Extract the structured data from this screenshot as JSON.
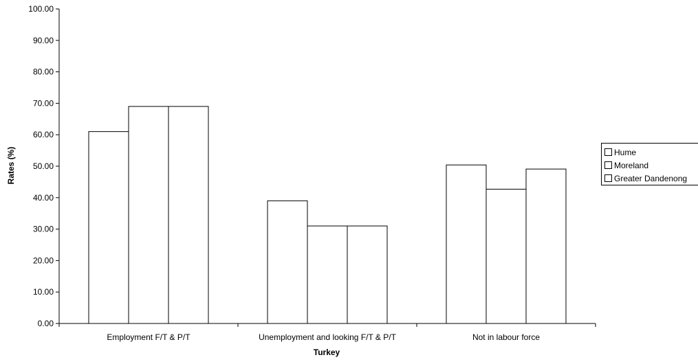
{
  "chart_data": {
    "type": "bar",
    "title": "",
    "xlabel": "Turkey",
    "ylabel": "Rates (%)",
    "ylim": [
      0,
      100
    ],
    "yticks": [
      "0.00",
      "10.00",
      "20.00",
      "30.00",
      "40.00",
      "50.00",
      "60.00",
      "70.00",
      "80.00",
      "90.00",
      "100.00"
    ],
    "categories": [
      "Employment F/T & P/T",
      "Unemployment and looking F/T & P/T",
      "Not in labour force"
    ],
    "series": [
      {
        "name": "Hume",
        "values": [
          61.0,
          39.0,
          50.4
        ],
        "color": "#ffffff"
      },
      {
        "name": "Moreland",
        "values": [
          69.0,
          31.0,
          42.7
        ],
        "color": "#ffffff"
      },
      {
        "name": "Greater Dandenong",
        "values": [
          69.0,
          31.0,
          49.1
        ],
        "color": "#ffffff"
      }
    ],
    "grid": false,
    "legend_position": "right"
  }
}
